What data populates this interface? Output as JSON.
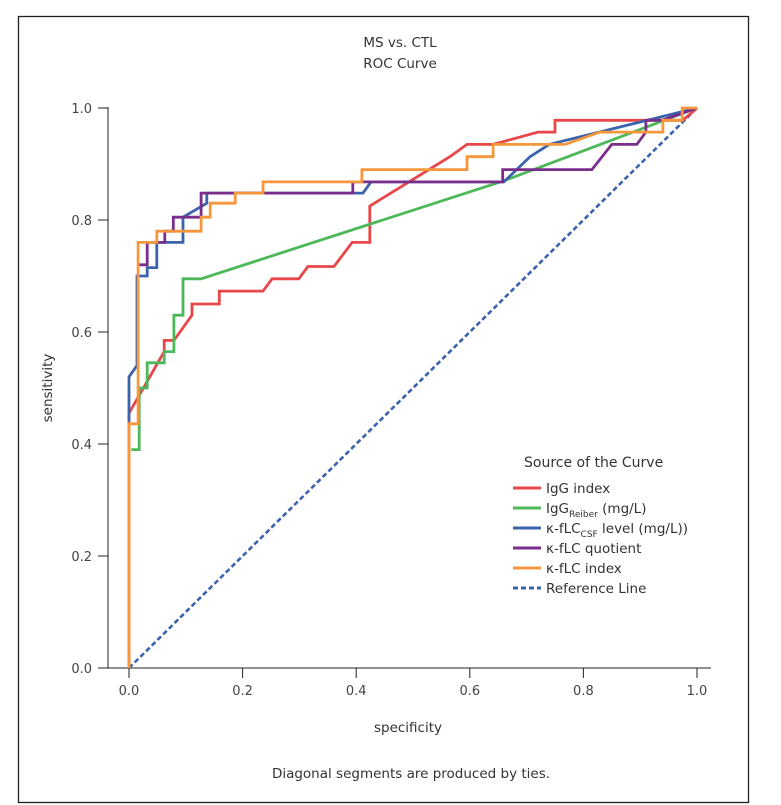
{
  "chart_data": {
    "type": "line",
    "title": "MS vs. CTL",
    "subtitle": "ROC Curve",
    "xlabel": "specificity",
    "ylabel": "sensitivity",
    "xlim": [
      0,
      1
    ],
    "ylim": [
      0,
      1
    ],
    "x_ticks": [
      "0.0",
      "0.2",
      "0.4",
      "0.6",
      "0.8",
      "1.0"
    ],
    "y_ticks": [
      "0.0",
      "0.2",
      "0.4",
      "0.6",
      "0.8",
      "1.0"
    ],
    "grid": false,
    "footnote": "Diagonal segments are produced by ties.",
    "legend": {
      "title": "Source of the Curve",
      "placement": "bottom-right"
    },
    "series": [
      {
        "name": "IgG index",
        "label_main": "IgG index",
        "label_sub": "",
        "label_tail": "",
        "color": "#e8474a",
        "dashed": false,
        "points": [
          [
            0,
            0
          ],
          [
            0,
            0.455
          ],
          [
            0.062,
            0.565
          ],
          [
            0.062,
            0.585
          ],
          [
            0.079,
            0.585
          ],
          [
            0.111,
            0.63
          ],
          [
            0.111,
            0.65
          ],
          [
            0.159,
            0.65
          ],
          [
            0.159,
            0.673
          ],
          [
            0.236,
            0.673
          ],
          [
            0.252,
            0.695
          ],
          [
            0.299,
            0.695
          ],
          [
            0.315,
            0.717
          ],
          [
            0.361,
            0.717
          ],
          [
            0.393,
            0.76
          ],
          [
            0.424,
            0.76
          ],
          [
            0.424,
            0.825
          ],
          [
            0.565,
            0.913
          ],
          [
            0.595,
            0.935
          ],
          [
            0.641,
            0.935
          ],
          [
            0.72,
            0.957
          ],
          [
            0.75,
            0.957
          ],
          [
            0.75,
            0.978
          ],
          [
            0.975,
            0.978
          ],
          [
            1,
            1
          ]
        ]
      },
      {
        "name": "IgG Reiber (mg/L)",
        "label_main": "IgG",
        "label_sub": "Reiber",
        "label_tail": " (mg/L)",
        "color": "#4db85a",
        "dashed": false,
        "points": [
          [
            0.004,
            0.39
          ],
          [
            0.018,
            0.39
          ],
          [
            0.018,
            0.5
          ],
          [
            0.032,
            0.5
          ],
          [
            0.032,
            0.545
          ],
          [
            0.062,
            0.545
          ],
          [
            0.062,
            0.565
          ],
          [
            0.079,
            0.565
          ],
          [
            0.079,
            0.63
          ],
          [
            0.095,
            0.63
          ],
          [
            0.095,
            0.695
          ],
          [
            0.127,
            0.695
          ],
          [
            0.66,
            0.87
          ],
          [
            1,
            1
          ]
        ]
      },
      {
        "name": "κ-fLC CSF level (mg/L)",
        "label_main": "κ-fLC",
        "label_sub": "CSF",
        "label_tail": " level (mg/L))",
        "color": "#3b62ad",
        "dashed": false,
        "points": [
          [
            0,
            0.44
          ],
          [
            0,
            0.52
          ],
          [
            0.014,
            0.54
          ],
          [
            0.014,
            0.7
          ],
          [
            0.032,
            0.7
          ],
          [
            0.032,
            0.715
          ],
          [
            0.049,
            0.715
          ],
          [
            0.049,
            0.76
          ],
          [
            0.095,
            0.76
          ],
          [
            0.095,
            0.805
          ],
          [
            0.137,
            0.83
          ],
          [
            0.137,
            0.848
          ],
          [
            0.412,
            0.848
          ],
          [
            0.426,
            0.868
          ],
          [
            0.66,
            0.868
          ],
          [
            0.706,
            0.913
          ],
          [
            0.74,
            0.935
          ],
          [
            1,
            1
          ]
        ]
      },
      {
        "name": "κ-fLC quotient",
        "label_main": "κ-fLC quotient",
        "label_sub": "",
        "label_tail": "",
        "color": "#7a2e8c",
        "dashed": false,
        "points": [
          [
            0.016,
            0.72
          ],
          [
            0.032,
            0.72
          ],
          [
            0.032,
            0.76
          ],
          [
            0.063,
            0.76
          ],
          [
            0.063,
            0.78
          ],
          [
            0.078,
            0.78
          ],
          [
            0.078,
            0.805
          ],
          [
            0.127,
            0.805
          ],
          [
            0.127,
            0.848
          ],
          [
            0.394,
            0.848
          ],
          [
            0.394,
            0.868
          ],
          [
            0.658,
            0.868
          ],
          [
            0.658,
            0.89
          ],
          [
            0.815,
            0.89
          ],
          [
            0.85,
            0.935
          ],
          [
            0.894,
            0.935
          ],
          [
            0.91,
            0.957
          ],
          [
            0.91,
            0.978
          ],
          [
            0.938,
            0.978
          ],
          [
            1,
            1
          ]
        ]
      },
      {
        "name": "κ-fLC index",
        "label_main": "κ-fLC index",
        "label_sub": "",
        "label_tail": "",
        "color": "#f5973a",
        "dashed": false,
        "points": [
          [
            0,
            0
          ],
          [
            0,
            0.436
          ],
          [
            0.016,
            0.436
          ],
          [
            0.016,
            0.76
          ],
          [
            0.049,
            0.76
          ],
          [
            0.049,
            0.78
          ],
          [
            0.127,
            0.78
          ],
          [
            0.127,
            0.805
          ],
          [
            0.143,
            0.805
          ],
          [
            0.143,
            0.83
          ],
          [
            0.187,
            0.83
          ],
          [
            0.187,
            0.848
          ],
          [
            0.236,
            0.848
          ],
          [
            0.236,
            0.868
          ],
          [
            0.41,
            0.868
          ],
          [
            0.41,
            0.89
          ],
          [
            0.595,
            0.89
          ],
          [
            0.595,
            0.913
          ],
          [
            0.641,
            0.913
          ],
          [
            0.641,
            0.935
          ],
          [
            0.768,
            0.935
          ],
          [
            0.829,
            0.957
          ],
          [
            0.94,
            0.957
          ],
          [
            0.94,
            0.978
          ],
          [
            0.974,
            0.978
          ],
          [
            0.974,
            1
          ],
          [
            1,
            1
          ]
        ]
      },
      {
        "name": "Reference Line",
        "label_main": "Reference Line",
        "label_sub": "",
        "label_tail": "",
        "color": "#3b62ad",
        "dashed": true,
        "points": [
          [
            0,
            0
          ],
          [
            1,
            1
          ]
        ]
      }
    ]
  }
}
